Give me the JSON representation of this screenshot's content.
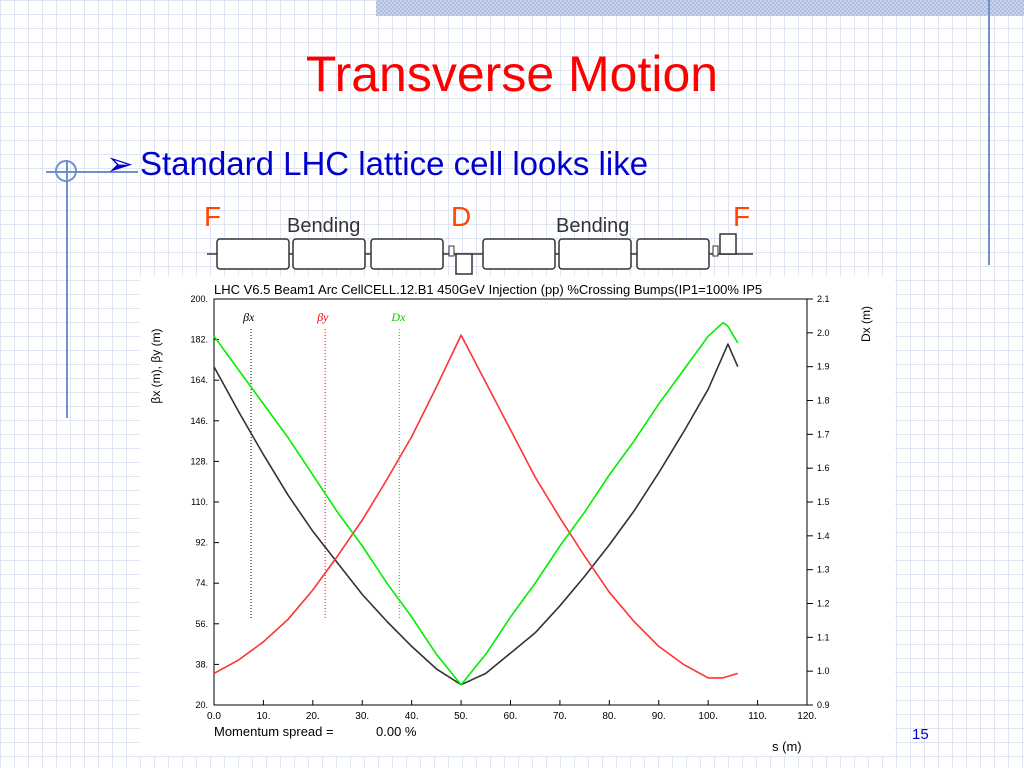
{
  "slide": {
    "title": "Transverse Motion",
    "bullet": "Standard LHC lattice cell looks like",
    "page_number": "15"
  },
  "lattice": {
    "labels": {
      "f_left": "F",
      "bending_left": "Bending",
      "d": "D",
      "bending_right": "Bending",
      "f_right": "F"
    },
    "colors": {
      "quad_label": "#ff4500",
      "magnet_outline": "#333333"
    }
  },
  "chart_data": {
    "type": "line",
    "title": "LHC V6.5 Beam1 Arc CellCELL.12.B1 450GeV Injection (pp) %Crossing Bumps(IP1=100% IP5",
    "xlabel": "s (m)",
    "ylabel": "βx (m), βy (m)",
    "y2label": "Dx (m)",
    "footer_label": "Momentum spread =",
    "footer_value": "0.00 %",
    "xlim": [
      0,
      120
    ],
    "ylim": [
      20,
      200
    ],
    "y2lim": [
      0.9,
      2.1
    ],
    "x_ticks": [
      "0.0",
      "10.",
      "20.",
      "30.",
      "40.",
      "50.",
      "60.",
      "70.",
      "80.",
      "90.",
      "100.",
      "110.",
      "120."
    ],
    "x_tick_values": [
      0,
      10,
      20,
      30,
      40,
      50,
      60,
      70,
      80,
      90,
      100,
      110,
      120
    ],
    "y_ticks": [
      "20.",
      "38.",
      "56.",
      "74.",
      "92.",
      "110.",
      "128.",
      "146.",
      "164.",
      "182.",
      "200."
    ],
    "y_tick_values": [
      20,
      38,
      56,
      74,
      92,
      110,
      128,
      146,
      164,
      182,
      200
    ],
    "y2_ticks": [
      "0.9",
      "1.0",
      "1.1",
      "1.2",
      "1.3",
      "1.4",
      "1.5",
      "1.6",
      "1.7",
      "1.8",
      "1.9",
      "2.0",
      "2.1"
    ],
    "y2_tick_values": [
      0.9,
      1.0,
      1.1,
      1.2,
      1.3,
      1.4,
      1.5,
      1.6,
      1.7,
      1.8,
      1.9,
      2.0,
      2.1
    ],
    "legend": [
      {
        "label": "βx",
        "color": "#000000",
        "x": 7.5
      },
      {
        "label": "βy",
        "color": "#ff0000",
        "x": 22.5
      },
      {
        "label": "Dx",
        "color": "#00cc00",
        "x": 37.5
      }
    ],
    "series": [
      {
        "name": "βx",
        "axis": "left",
        "color": "#333333",
        "x": [
          0,
          5,
          10,
          15,
          20,
          25,
          30,
          35,
          40,
          45,
          50,
          55,
          60,
          65,
          70,
          75,
          80,
          85,
          90,
          95,
          100,
          103,
          104,
          106
        ],
        "y": [
          170,
          150,
          131,
          113,
          97,
          83,
          69,
          57,
          46,
          36,
          29,
          34,
          43,
          52,
          64,
          77,
          91,
          106,
          123,
          141,
          160,
          175,
          180,
          170
        ]
      },
      {
        "name": "βy",
        "axis": "left",
        "color": "#ff3333",
        "x": [
          0,
          5,
          10,
          15,
          20,
          25,
          30,
          35,
          40,
          45,
          50,
          55,
          60,
          65,
          70,
          75,
          80,
          85,
          90,
          95,
          100,
          103,
          106
        ],
        "y": [
          34,
          40,
          48,
          58,
          71,
          86,
          102,
          120,
          139,
          161,
          184,
          163,
          142,
          121,
          103,
          86,
          70,
          57,
          46,
          38,
          32,
          32,
          34
        ]
      },
      {
        "name": "Dx",
        "axis": "right",
        "color": "#00ee00",
        "x": [
          0,
          5,
          10,
          15,
          20,
          25,
          30,
          35,
          40,
          45,
          50,
          55,
          60,
          65,
          70,
          75,
          80,
          85,
          90,
          95,
          100,
          103,
          104,
          106
        ],
        "y": [
          1.99,
          1.89,
          1.79,
          1.69,
          1.58,
          1.47,
          1.37,
          1.26,
          1.16,
          1.05,
          0.96,
          1.05,
          1.16,
          1.26,
          1.37,
          1.47,
          1.58,
          1.68,
          1.79,
          1.89,
          1.99,
          2.03,
          2.02,
          1.97
        ]
      }
    ]
  }
}
